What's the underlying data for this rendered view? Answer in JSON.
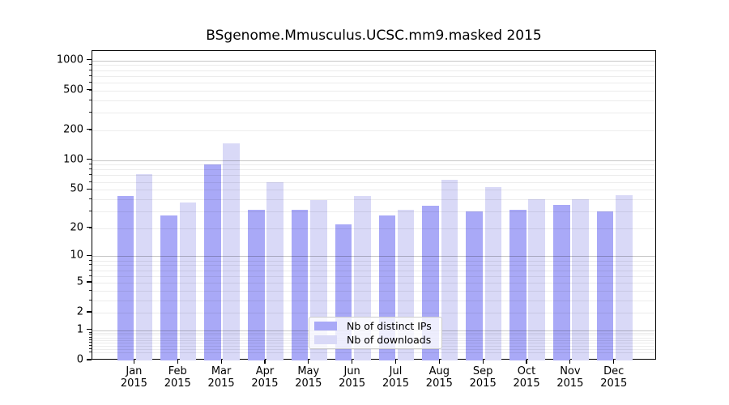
{
  "title": "BSgenome.Mmusculus.UCSC.mm9.masked 2015",
  "legend": {
    "items": [
      {
        "label": "Nb of distinct IPs",
        "color": "#a9a9f7"
      },
      {
        "label": "Nb of downloads",
        "color": "#d9d9f7"
      }
    ]
  },
  "chart_data": {
    "type": "bar",
    "title": "BSgenome.Mmusculus.UCSC.mm9.masked 2015",
    "categories": [
      "Jan",
      "Feb",
      "Mar",
      "Apr",
      "May",
      "Jun",
      "Jul",
      "Aug",
      "Sep",
      "Oct",
      "Nov",
      "Dec"
    ],
    "year_label": "2015",
    "series": [
      {
        "name": "Nb of distinct IPs",
        "color": "#a9a9f7",
        "values": [
          43,
          27,
          90,
          31,
          31,
          22,
          27,
          34,
          30,
          31,
          35,
          30
        ]
      },
      {
        "name": "Nb of downloads",
        "color": "#d9d9f7",
        "values": [
          72,
          37,
          148,
          60,
          39,
          43,
          31,
          63,
          53,
          40,
          40,
          44
        ]
      }
    ],
    "xlabel": "",
    "ylabel": "",
    "y_scale": "log1p",
    "y_ticks": [
      0,
      1,
      2,
      5,
      10,
      20,
      50,
      100,
      200,
      500,
      1000
    ],
    "ylim": [
      0,
      1230
    ],
    "grid": "major-and-minor-horizontal",
    "legend_position": "lower center"
  }
}
